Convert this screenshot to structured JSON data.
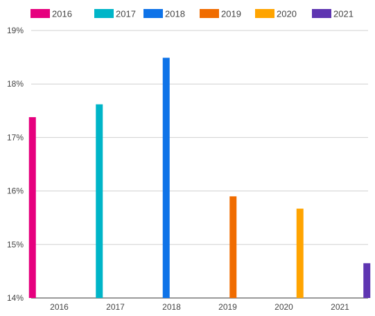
{
  "chart_data": {
    "type": "bar",
    "title": "",
    "xlabel": "",
    "ylabel": "",
    "categories": [
      "2016",
      "2017",
      "2018",
      "2019",
      "2020",
      "2021"
    ],
    "series": [
      {
        "name": "2016",
        "color": "#e6007e",
        "values": [
          17.38,
          null,
          null,
          null,
          null,
          null
        ]
      },
      {
        "name": "2017",
        "color": "#00b5c8",
        "values": [
          null,
          17.62,
          null,
          null,
          null,
          null
        ]
      },
      {
        "name": "2018",
        "color": "#0e73e8",
        "values": [
          null,
          null,
          18.49,
          null,
          null,
          null
        ]
      },
      {
        "name": "2019",
        "color": "#f06c00",
        "values": [
          null,
          null,
          null,
          15.9,
          null,
          null
        ]
      },
      {
        "name": "2020",
        "color": "#ffa400",
        "values": [
          null,
          null,
          null,
          null,
          15.67,
          null
        ]
      },
      {
        "name": "2021",
        "color": "#5e35b1",
        "values": [
          null,
          null,
          null,
          null,
          null,
          14.65
        ]
      }
    ],
    "ylim": [
      14,
      19
    ],
    "yticks": [
      "14%",
      "15%",
      "16%",
      "17%",
      "18%",
      "19%"
    ],
    "grid": true,
    "legend_position": "top"
  }
}
